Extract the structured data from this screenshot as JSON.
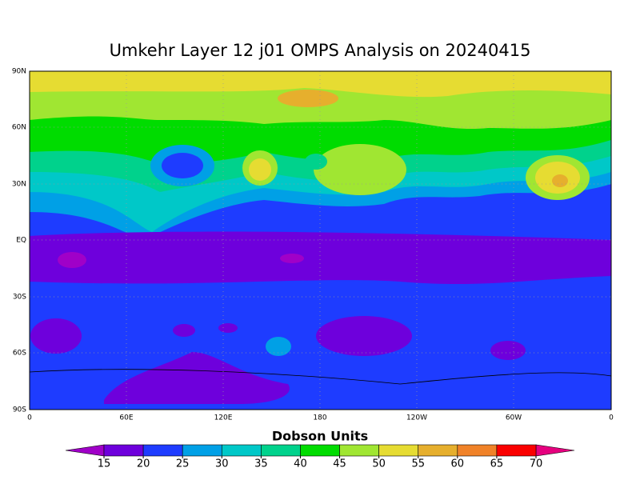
{
  "title": "Umkehr Layer 12 j01 OMPS Analysis on 20240415",
  "lat_labels": [
    "90N",
    "60N",
    "30N",
    "EQ",
    "30S",
    "60S",
    "90S"
  ],
  "lon_labels": [
    "0",
    "60E",
    "120E",
    "180",
    "120W",
    "60W",
    "0"
  ],
  "colorbar": {
    "label": "Dobson Units",
    "ticks": [
      15,
      20,
      25,
      30,
      35,
      40,
      45,
      50,
      55,
      60,
      65,
      70
    ],
    "under_color": "#a000c8",
    "colors": [
      "#6e00dc",
      "#1e3cff",
      "#00a0e6",
      "#00c8c8",
      "#00d28c",
      "#00dc00",
      "#a0e632",
      "#e6dc32",
      "#e6af2d",
      "#f08228",
      "#fa0000"
    ],
    "over_color": "#e6007f"
  }
}
